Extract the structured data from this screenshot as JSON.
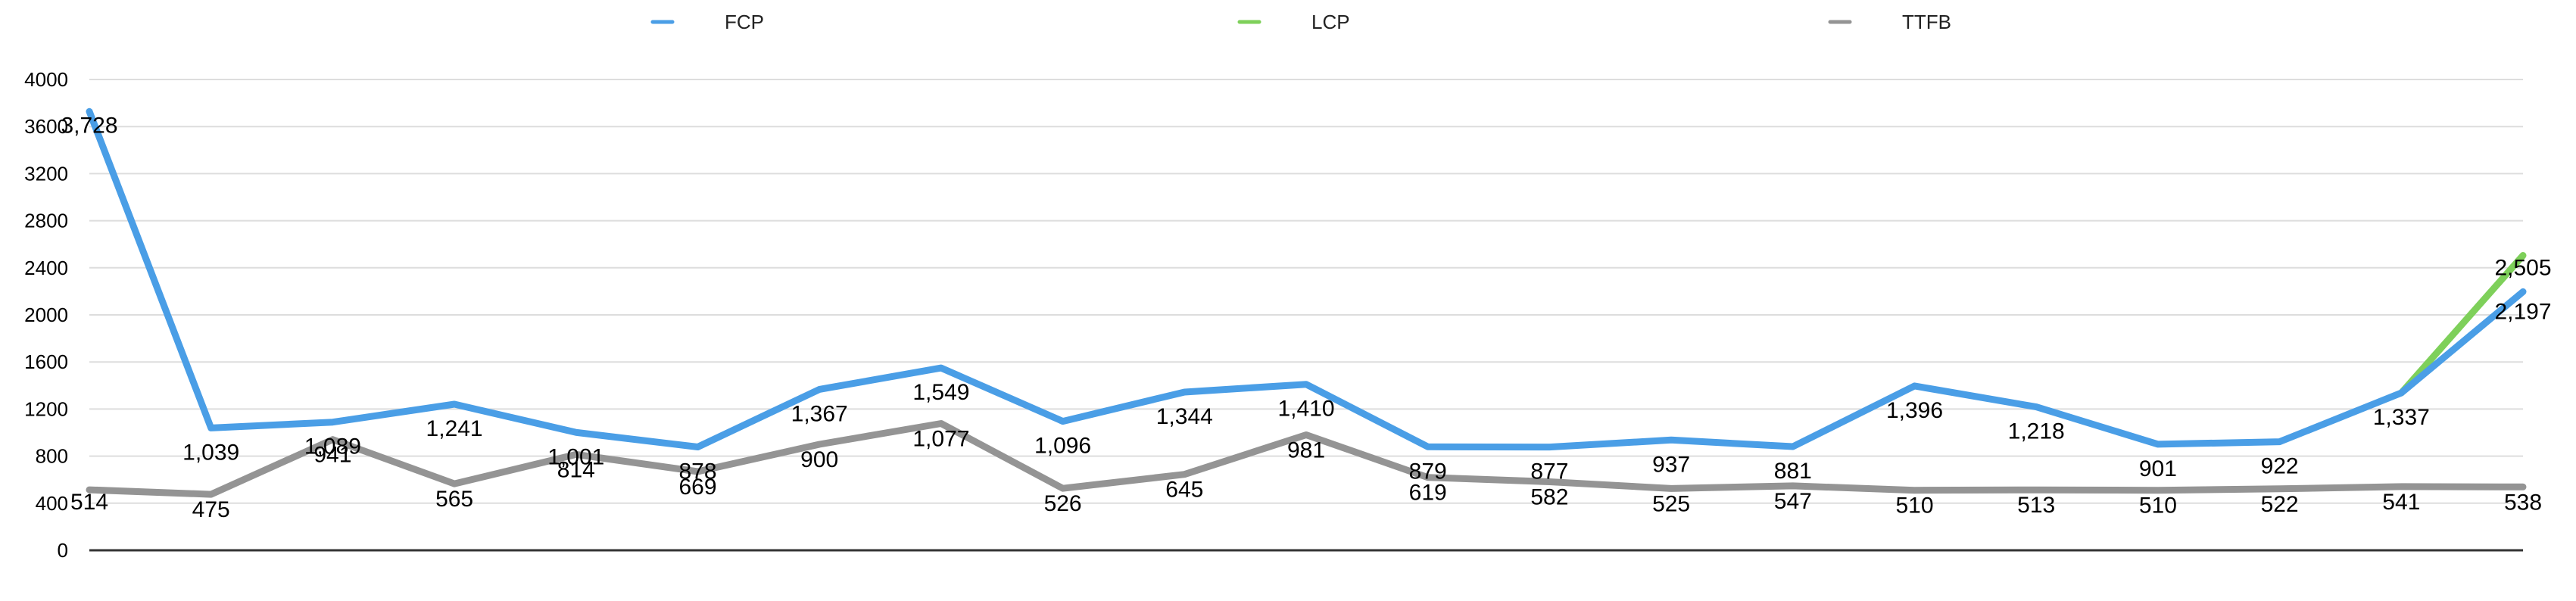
{
  "chart_data": {
    "type": "line",
    "title": "",
    "xlabel": "",
    "ylabel": "",
    "ylim": [
      0,
      4000
    ],
    "yticks": [
      0,
      400,
      800,
      1200,
      1600,
      2000,
      2400,
      2800,
      3200,
      3600,
      4000
    ],
    "ytick_labels": [
      "0",
      "400",
      "800",
      "1200",
      "1600",
      "2000",
      "2400",
      "2800",
      "3200",
      "3600",
      "4000"
    ],
    "grid": true,
    "legend_position": "top",
    "point_count": 21,
    "series": [
      {
        "name": "FCP",
        "color": "#4a9ee6",
        "values": [
          3728,
          1039,
          1089,
          1241,
          1001,
          878,
          1367,
          1549,
          1096,
          1344,
          1410,
          879,
          877,
          937,
          881,
          1396,
          1218,
          901,
          922,
          1337,
          2197
        ],
        "labels": [
          "3,728",
          "1,039",
          "1,089",
          "1,241",
          "1,001",
          "878",
          "1,367",
          "1,549",
          "1,096",
          "1,344",
          "1,410",
          "879",
          "877",
          "937",
          "881",
          "1,396",
          "1,218",
          "901",
          "922",
          "1,337",
          "2,197"
        ]
      },
      {
        "name": "LCP",
        "color": "#7ed05a",
        "values": [
          null,
          null,
          null,
          null,
          null,
          null,
          null,
          null,
          null,
          null,
          null,
          null,
          null,
          null,
          null,
          null,
          null,
          null,
          null,
          1337,
          2505
        ],
        "labels": [
          null,
          null,
          null,
          null,
          null,
          null,
          null,
          null,
          null,
          null,
          null,
          null,
          null,
          null,
          null,
          null,
          null,
          null,
          null,
          null,
          "2,505"
        ]
      },
      {
        "name": "TTFB",
        "color": "#949494",
        "values": [
          514,
          475,
          941,
          565,
          814,
          669,
          900,
          1077,
          526,
          645,
          981,
          619,
          582,
          525,
          547,
          510,
          513,
          510,
          522,
          541,
          538
        ],
        "labels": [
          "514",
          "475",
          "941",
          "565",
          "814",
          "669",
          "900",
          "1,077",
          "526",
          "645",
          "981",
          "619",
          "582",
          "525",
          "547",
          "510",
          "513",
          "510",
          "522",
          "541",
          "538"
        ]
      }
    ]
  }
}
